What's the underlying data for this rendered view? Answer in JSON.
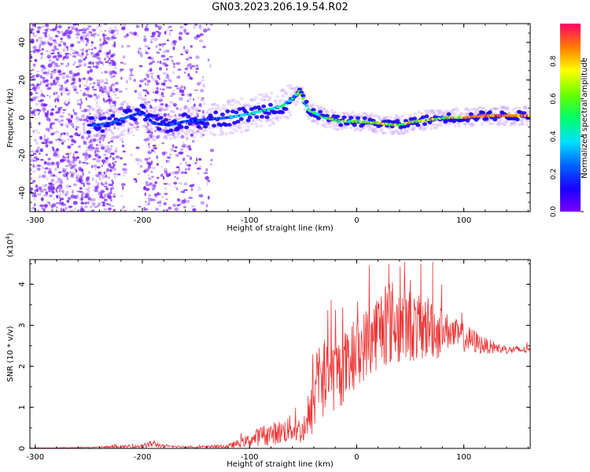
{
  "title": "GN03.2023.206.19.54.R02",
  "chart_data": [
    {
      "type": "heatmap",
      "xlabel": "Height of straight line (km)",
      "ylabel": "Frequency (Hz)",
      "xlim": [
        -305,
        162
      ],
      "ylim": [
        -50,
        50
      ],
      "xticks": [
        -300,
        -200,
        -100,
        0,
        100
      ],
      "yticks": [
        -40,
        -20,
        0,
        20,
        40
      ],
      "colorbar": {
        "label": "Normalized spectral amplitude",
        "range": [
          0.0,
          1.0
        ],
        "ticks": [
          "0.0",
          "0.2",
          "0.4",
          "0.6",
          "0.8"
        ]
      },
      "ridge": {
        "x": [
          -245,
          -230,
          -215,
          -200,
          -190,
          -175,
          -160,
          -140,
          -120,
          -100,
          -85,
          -70,
          -60,
          -53,
          -45,
          -30,
          -15,
          0,
          20,
          40,
          55,
          70,
          85,
          100,
          120,
          140,
          162
        ],
        "y": [
          -4,
          -3,
          0,
          3,
          -3,
          -4,
          -2,
          -1,
          0,
          2,
          4,
          6,
          10,
          14,
          4,
          0,
          -2,
          -2,
          -3,
          -4,
          -2,
          -1,
          0,
          0,
          1,
          1,
          1
        ]
      },
      "colors": {
        "noise": "#7a22ff",
        "scale": [
          "#7a00ff",
          "#1a00ff",
          "#0066ff",
          "#00e0ff",
          "#00ff66",
          "#66ff00",
          "#ffff00",
          "#ff8000",
          "#ff0066"
        ]
      }
    },
    {
      "type": "line",
      "xlabel": "Height of straight line (km)",
      "ylabel": "SNR (10 * v/v)",
      "multiplier": "(x10",
      "multiplier_exp": "4",
      "multiplier_close": ")",
      "xlim": [
        -305,
        162
      ],
      "ylim": [
        0,
        4.6
      ],
      "xticks": [
        -300,
        -200,
        -100,
        0,
        100
      ],
      "yticks": [
        0,
        1,
        2,
        3,
        4
      ],
      "series": [
        {
          "color": "#ee3333",
          "x": [
            -305,
            -250,
            -200,
            -190,
            -180,
            -150,
            -120,
            -100,
            -90,
            -70,
            -60,
            -50,
            -45,
            -40,
            -35,
            -30,
            -25,
            -20,
            -10,
            0,
            10,
            20,
            25,
            30,
            40,
            50,
            60,
            70,
            75,
            80,
            90,
            100,
            110,
            120,
            130,
            140,
            150,
            162
          ],
          "y": [
            0.01,
            0.02,
            0.05,
            0.12,
            0.05,
            0.03,
            0.05,
            0.2,
            0.3,
            0.4,
            0.5,
            0.4,
            0.6,
            1.2,
            1.8,
            1.6,
            1.7,
            1.8,
            2.0,
            2.3,
            2.6,
            2.9,
            3.0,
            3.1,
            3.0,
            3.0,
            2.9,
            3.0,
            2.8,
            2.9,
            2.8,
            2.7,
            2.6,
            2.5,
            2.45,
            2.4,
            2.4,
            2.4
          ],
          "amplitude": [
            0.005,
            0.01,
            0.05,
            0.1,
            0.03,
            0.02,
            0.05,
            0.15,
            0.25,
            0.3,
            0.35,
            0.3,
            0.4,
            0.9,
            1.1,
            1.0,
            0.9,
            0.9,
            0.9,
            0.8,
            0.9,
            1.0,
            1.0,
            1.1,
            1.0,
            0.9,
            0.8,
            0.8,
            0.7,
            0.5,
            0.4,
            0.35,
            0.3,
            0.2,
            0.15,
            0.1,
            0.1,
            0.08
          ],
          "peaks": [
            {
              "x": 30,
              "y": 4.5
            },
            {
              "x": 71,
              "y": 4.55
            },
            {
              "x": 50,
              "y": 4.1
            },
            {
              "x": 27,
              "y": 3.95
            },
            {
              "x": -30,
              "y": 2.65
            }
          ]
        }
      ]
    }
  ]
}
